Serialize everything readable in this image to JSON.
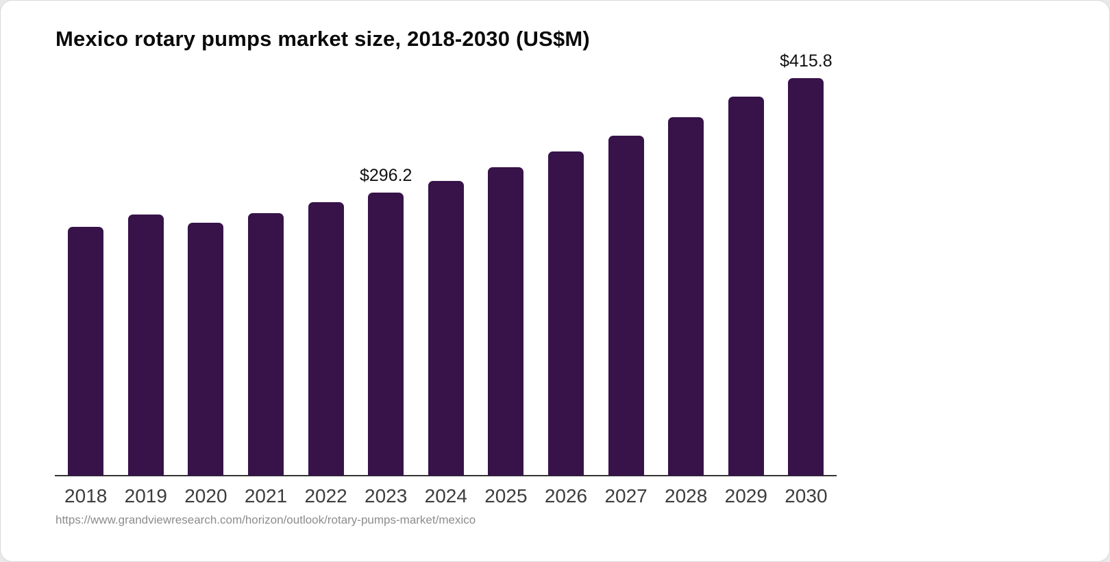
{
  "page": {
    "background_color": "#e9e9e9",
    "card_background_color": "#ffffff"
  },
  "header": {
    "title": "Mexico rotary pumps market size, 2018-2030 (US$M)"
  },
  "footer": {
    "source_url": "https://www.grandviewresearch.com/horizon/outlook/rotary-pumps-market/mexico"
  },
  "chart_data": {
    "type": "bar",
    "title": "Mexico rotary pumps market size, 2018-2030 (US$M)",
    "categories": [
      "2018",
      "2019",
      "2020",
      "2021",
      "2022",
      "2023",
      "2024",
      "2025",
      "2026",
      "2027",
      "2028",
      "2029",
      "2030"
    ],
    "values": [
      260.5,
      272.8,
      264.2,
      274.7,
      285.7,
      296.2,
      308.0,
      322.7,
      338.8,
      355.3,
      374.9,
      396.8,
      415.8
    ],
    "point_labels": {
      "2023": "$296.2",
      "2030": "$415.8"
    },
    "xlabel": "",
    "ylabel": "",
    "ylim": [
      0,
      440
    ],
    "grid": false,
    "legend": false,
    "bar_color": "#371349",
    "axis_color": "#333333",
    "tick_label_color": "#3d3d3d",
    "value_label_color": "#111111"
  }
}
